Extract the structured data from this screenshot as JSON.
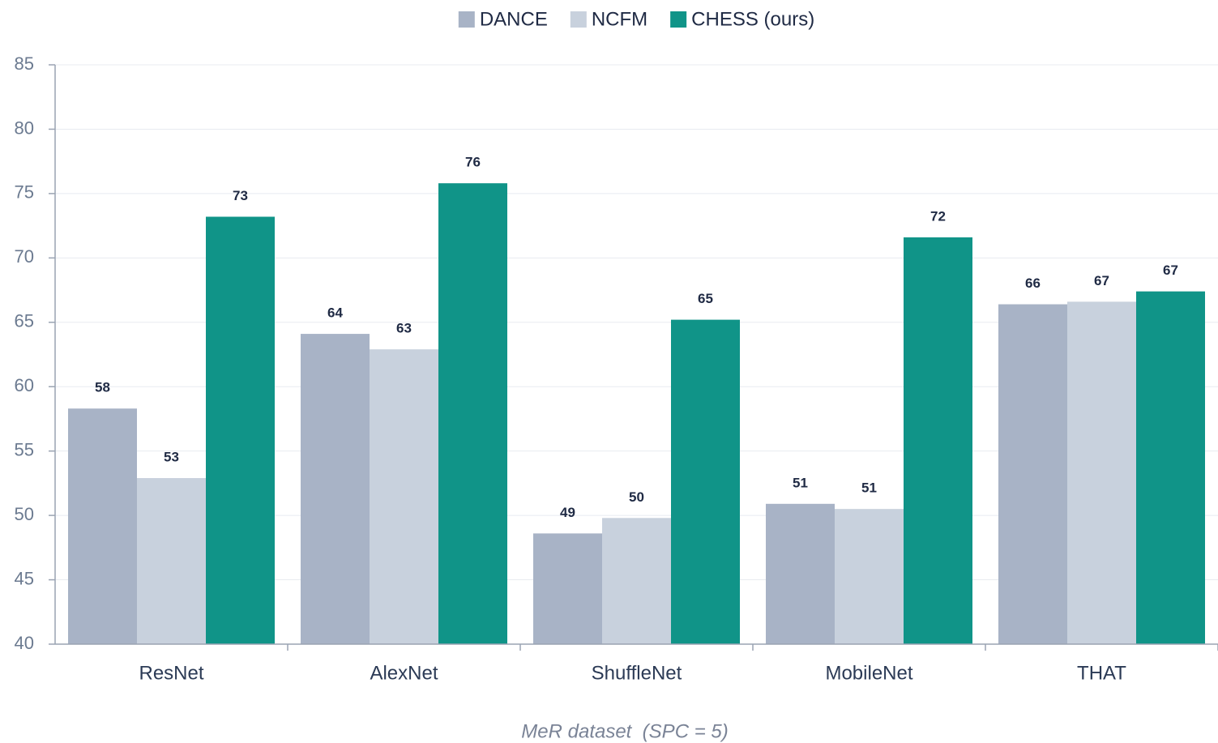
{
  "chart_data": {
    "type": "bar",
    "xlabel": "MeR dataset  (SPC = 5)",
    "categories": [
      "ResNet",
      "AlexNet",
      "ShuffleNet",
      "MobileNet",
      "THAT"
    ],
    "series": [
      {
        "name": "DANCE",
        "color": "#a8b3c6",
        "values": [
          58.3,
          64.1,
          48.6,
          50.9,
          66.4
        ],
        "value_labels": [
          "58",
          "64",
          "49",
          "51",
          "66"
        ]
      },
      {
        "name": "NCFM",
        "color": "#c8d1dd",
        "values": [
          52.9,
          62.9,
          49.8,
          50.5,
          66.6
        ],
        "value_labels": [
          "53",
          "63",
          "50",
          "51",
          "67"
        ]
      },
      {
        "name": "CHESS (ours)",
        "color": "#109488",
        "values": [
          73.2,
          75.8,
          65.2,
          71.6,
          67.4
        ],
        "value_labels": [
          "73",
          "76",
          "65",
          "72",
          "67"
        ]
      }
    ],
    "ylim": [
      40,
      85
    ],
    "yticks": [
      40,
      45,
      50,
      55,
      60,
      65,
      70,
      75,
      80,
      85
    ],
    "grid": true,
    "legend": "top"
  }
}
